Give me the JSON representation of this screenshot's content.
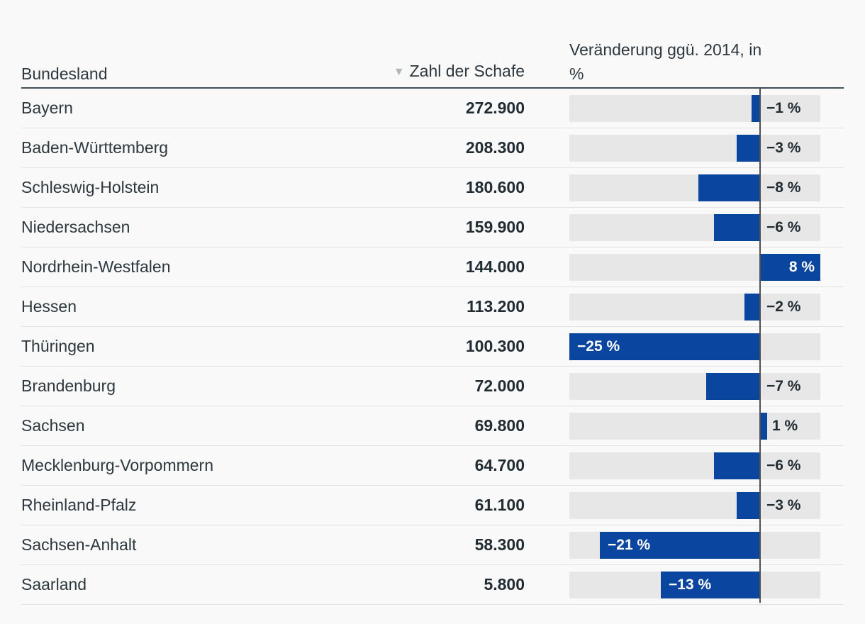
{
  "header": {
    "col_bundesland": "Bundesland",
    "col_schafe": "Zahl der Schafe",
    "col_change": "Veränderung ggü. 2014, in %",
    "sort_icon": "▼"
  },
  "colors": {
    "bar_blue": "#0a46a0",
    "track_gray": "#e7e7e7",
    "axis_line": "#505050",
    "text_dark": "#2d373e",
    "number_dark": "#222c33",
    "label_inside": "#ffffff",
    "header_rule": "#3e4d56",
    "row_separator": "#e0e4e7",
    "background": "#f9f9f9",
    "sort_icon_gray": "#b1b6ba"
  },
  "chart_data": {
    "type": "bar",
    "orientation": "horizontal",
    "title": "",
    "xlabel": "Veränderung ggü. 2014, in %",
    "ylabel": "Bundesland",
    "xlim": [
      -25,
      8
    ],
    "grid": false,
    "categories": [
      "Bayern",
      "Baden-Württemberg",
      "Schleswig-Holstein",
      "Niedersachsen",
      "Nordrhein-Westfalen",
      "Hessen",
      "Thüringen",
      "Brandenburg",
      "Sachsen",
      "Mecklenburg-Vorpommern",
      "Rheinland-Pfalz",
      "Sachsen-Anhalt",
      "Saarland"
    ],
    "series": [
      {
        "name": "Zahl der Schafe",
        "values": [
          272900,
          208300,
          180600,
          159900,
          144000,
          113200,
          100300,
          72000,
          69800,
          64700,
          61100,
          58300,
          5800
        ]
      },
      {
        "name": "Veränderung ggü. 2014, in %",
        "values": [
          -1,
          -3,
          -8,
          -6,
          8,
          -2,
          -25,
          -7,
          1,
          -6,
          -3,
          -21,
          -13
        ]
      }
    ]
  },
  "rows": [
    {
      "state": "Bayern",
      "sheep": "272.900",
      "change": -1,
      "change_label": "−1 %",
      "label_inside": false
    },
    {
      "state": "Baden-Württemberg",
      "sheep": "208.300",
      "change": -3,
      "change_label": "−3 %",
      "label_inside": false
    },
    {
      "state": "Schleswig-Holstein",
      "sheep": "180.600",
      "change": -8,
      "change_label": "−8 %",
      "label_inside": false
    },
    {
      "state": "Niedersachsen",
      "sheep": "159.900",
      "change": -6,
      "change_label": "−6 %",
      "label_inside": false
    },
    {
      "state": "Nordrhein-Westfalen",
      "sheep": "144.000",
      "change": 8,
      "change_label": "8 %",
      "label_inside": true
    },
    {
      "state": "Hessen",
      "sheep": "113.200",
      "change": -2,
      "change_label": "−2 %",
      "label_inside": false
    },
    {
      "state": "Thüringen",
      "sheep": "100.300",
      "change": -25,
      "change_label": "−25 %",
      "label_inside": true
    },
    {
      "state": "Brandenburg",
      "sheep": "72.000",
      "change": -7,
      "change_label": "−7 %",
      "label_inside": false
    },
    {
      "state": "Sachsen",
      "sheep": "69.800",
      "change": 1,
      "change_label": "1 %",
      "label_inside": false
    },
    {
      "state": "Mecklenburg-Vorpommern",
      "sheep": "64.700",
      "change": -6,
      "change_label": "−6 %",
      "label_inside": false
    },
    {
      "state": "Rheinland-Pfalz",
      "sheep": "61.100",
      "change": -3,
      "change_label": "−3 %",
      "label_inside": false
    },
    {
      "state": "Sachsen-Anhalt",
      "sheep": "58.300",
      "change": -21,
      "change_label": "−21 %",
      "label_inside": true
    },
    {
      "state": "Saarland",
      "sheep": "5.800",
      "change": -13,
      "change_label": "−13 %",
      "label_inside": true
    }
  ]
}
